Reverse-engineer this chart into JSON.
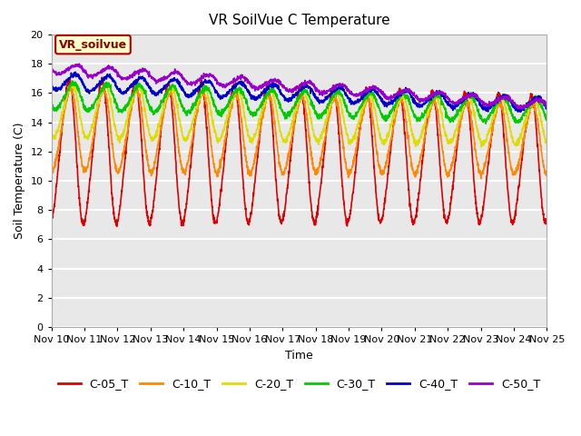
{
  "title": "VR SoilVue C Temperature",
  "xlabel": "Time",
  "ylabel": "Soil Temperature (C)",
  "ylim": [
    0,
    20
  ],
  "xlim": [
    0,
    360
  ],
  "plot_bg": "#e8e8e8",
  "grid_color": "#ffffff",
  "annotation_label": "VR_soilvue",
  "annotation_bg": "#ffffcc",
  "annotation_border": "#aa0000",
  "series": [
    {
      "label": "C-05_T",
      "color": "#dd0000",
      "depth": 5,
      "base_start": 12.0,
      "base_end": 11.5,
      "amp_start": 4.8,
      "amp_end": 4.2,
      "phase": 0.0
    },
    {
      "label": "C-10_T",
      "color": "#ff8800",
      "depth": 10,
      "base_start": 13.5,
      "base_end": 12.8,
      "amp_start": 2.8,
      "amp_end": 2.3,
      "phase": 0.3
    },
    {
      "label": "C-20_T",
      "color": "#dddd00",
      "depth": 20,
      "base_start": 14.8,
      "base_end": 14.0,
      "amp_start": 1.8,
      "amp_end": 1.5,
      "phase": 0.6
    },
    {
      "label": "C-30_T",
      "color": "#00cc00",
      "depth": 30,
      "base_start": 15.8,
      "base_end": 14.8,
      "amp_start": 0.9,
      "amp_end": 0.8,
      "phase": 0.9
    },
    {
      "label": "C-40_T",
      "color": "#0000cc",
      "depth": 40,
      "base_start": 16.8,
      "base_end": 15.2,
      "amp_start": 0.55,
      "amp_end": 0.45,
      "phase": 1.2
    },
    {
      "label": "C-50_T",
      "color": "#9900cc",
      "depth": 50,
      "base_start": 17.7,
      "base_end": 15.2,
      "amp_start": 0.35,
      "amp_end": 0.3,
      "phase": 1.5
    }
  ],
  "xtick_labels": [
    "Nov 10",
    "Nov 11",
    "Nov 12",
    "Nov 13",
    "Nov 14",
    "Nov 15",
    "Nov 16",
    "Nov 17",
    "Nov 18",
    "Nov 19",
    "Nov 20",
    "Nov 21",
    "Nov 22",
    "Nov 23",
    "Nov 24",
    "Nov 25"
  ],
  "figsize": [
    6.4,
    4.8
  ],
  "dpi": 100
}
